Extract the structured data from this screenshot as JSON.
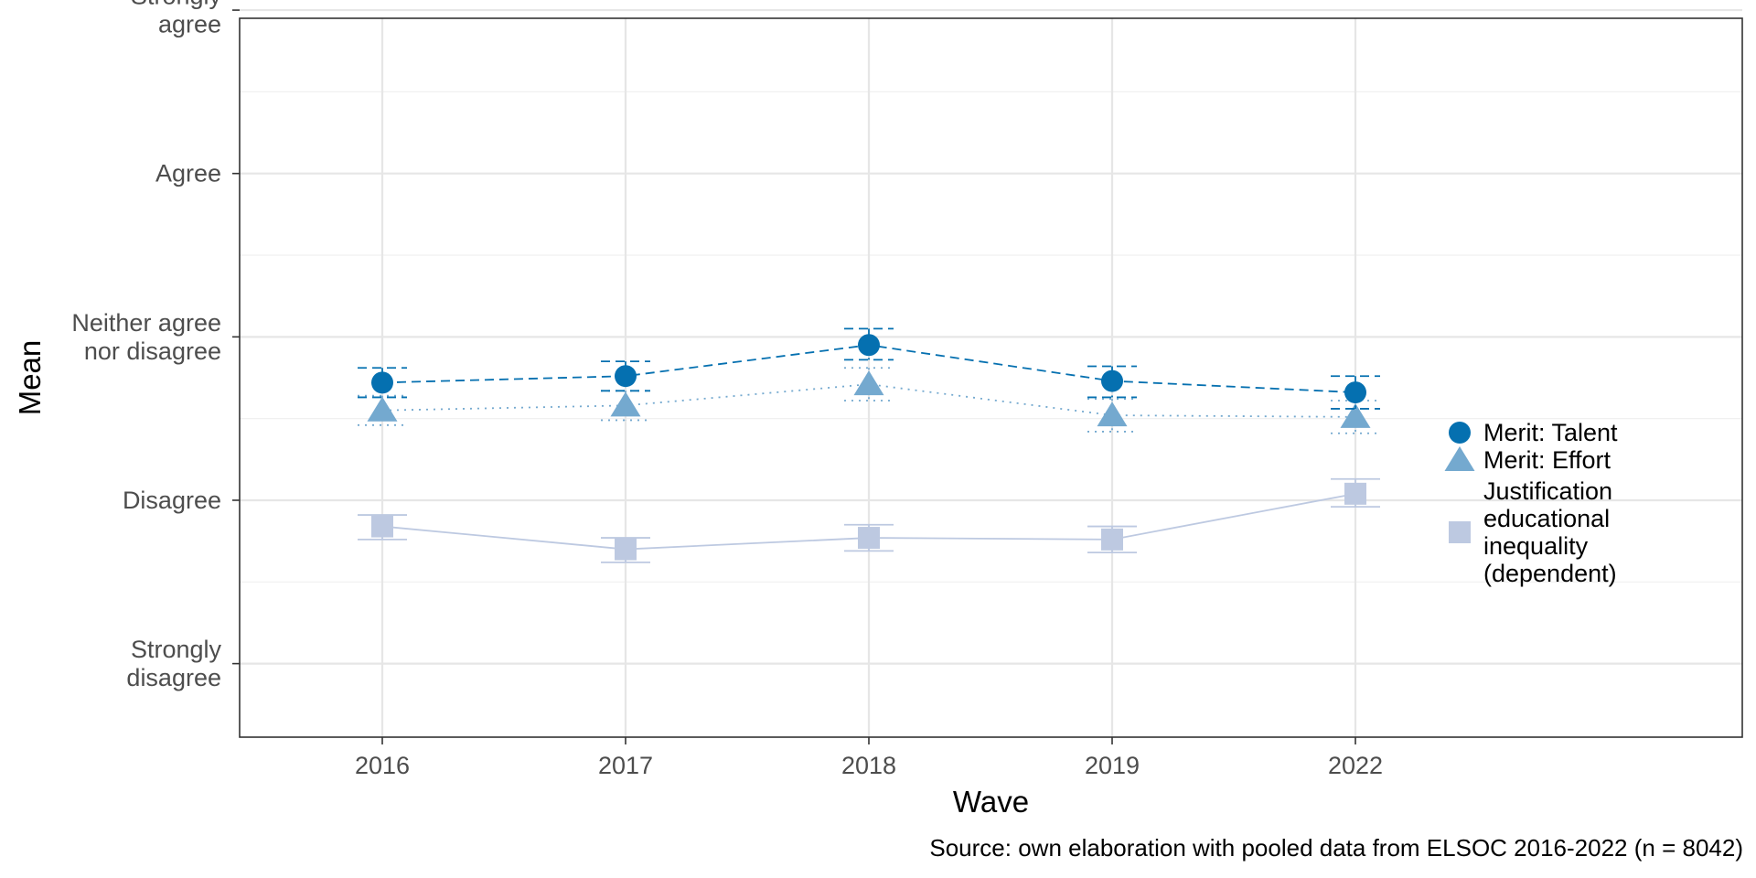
{
  "chart_data": {
    "type": "line",
    "x": [
      "2016",
      "2017",
      "2018",
      "2019",
      "2022"
    ],
    "xlabel": "Wave",
    "ylabel": "Mean",
    "ylim": [
      0.55,
      4.95
    ],
    "y_ticks": [
      {
        "value": 1,
        "lines": [
          "Strongly",
          "disagree"
        ]
      },
      {
        "value": 2,
        "lines": [
          "Disagree"
        ]
      },
      {
        "value": 3,
        "lines": [
          "Neither agree",
          "nor disagree"
        ]
      },
      {
        "value": 4,
        "lines": [
          "Agree"
        ]
      },
      {
        "value": 5,
        "lines": [
          "Strongly",
          "agree"
        ]
      }
    ],
    "grid": true,
    "legend_position": "right",
    "series": [
      {
        "name": "Merit: Talent",
        "legend_lines": [
          "Merit: Talent"
        ],
        "marker": "circle",
        "line_style": "dashed",
        "color": "#0570b0",
        "values": [
          2.72,
          2.76,
          2.95,
          2.73,
          2.66
        ],
        "ci_low": [
          2.63,
          2.67,
          2.86,
          2.63,
          2.56
        ],
        "ci_high": [
          2.81,
          2.85,
          3.05,
          2.82,
          2.76
        ]
      },
      {
        "name": "Merit: Effort",
        "legend_lines": [
          "Merit: Effort"
        ],
        "marker": "triangle",
        "line_style": "dotted",
        "color": "#74a9cf",
        "values": [
          2.55,
          2.58,
          2.71,
          2.52,
          2.51
        ],
        "ci_low": [
          2.46,
          2.49,
          2.61,
          2.42,
          2.41
        ],
        "ci_high": [
          2.64,
          2.67,
          2.81,
          2.62,
          2.61
        ]
      },
      {
        "name": "Justification educational inequality (dependent)",
        "legend_lines": [
          "Justification",
          "educational",
          "inequality",
          "(dependent)"
        ],
        "marker": "square",
        "line_style": "solid",
        "color": "#bdc9e1",
        "values": [
          1.84,
          1.7,
          1.77,
          1.76,
          2.04
        ],
        "ci_low": [
          1.76,
          1.62,
          1.69,
          1.68,
          1.96
        ],
        "ci_high": [
          1.91,
          1.77,
          1.85,
          1.84,
          2.13
        ]
      }
    ],
    "caption": "Source: own elaboration with pooled data from ELSOC 2016-2022 (n = 8042)"
  }
}
